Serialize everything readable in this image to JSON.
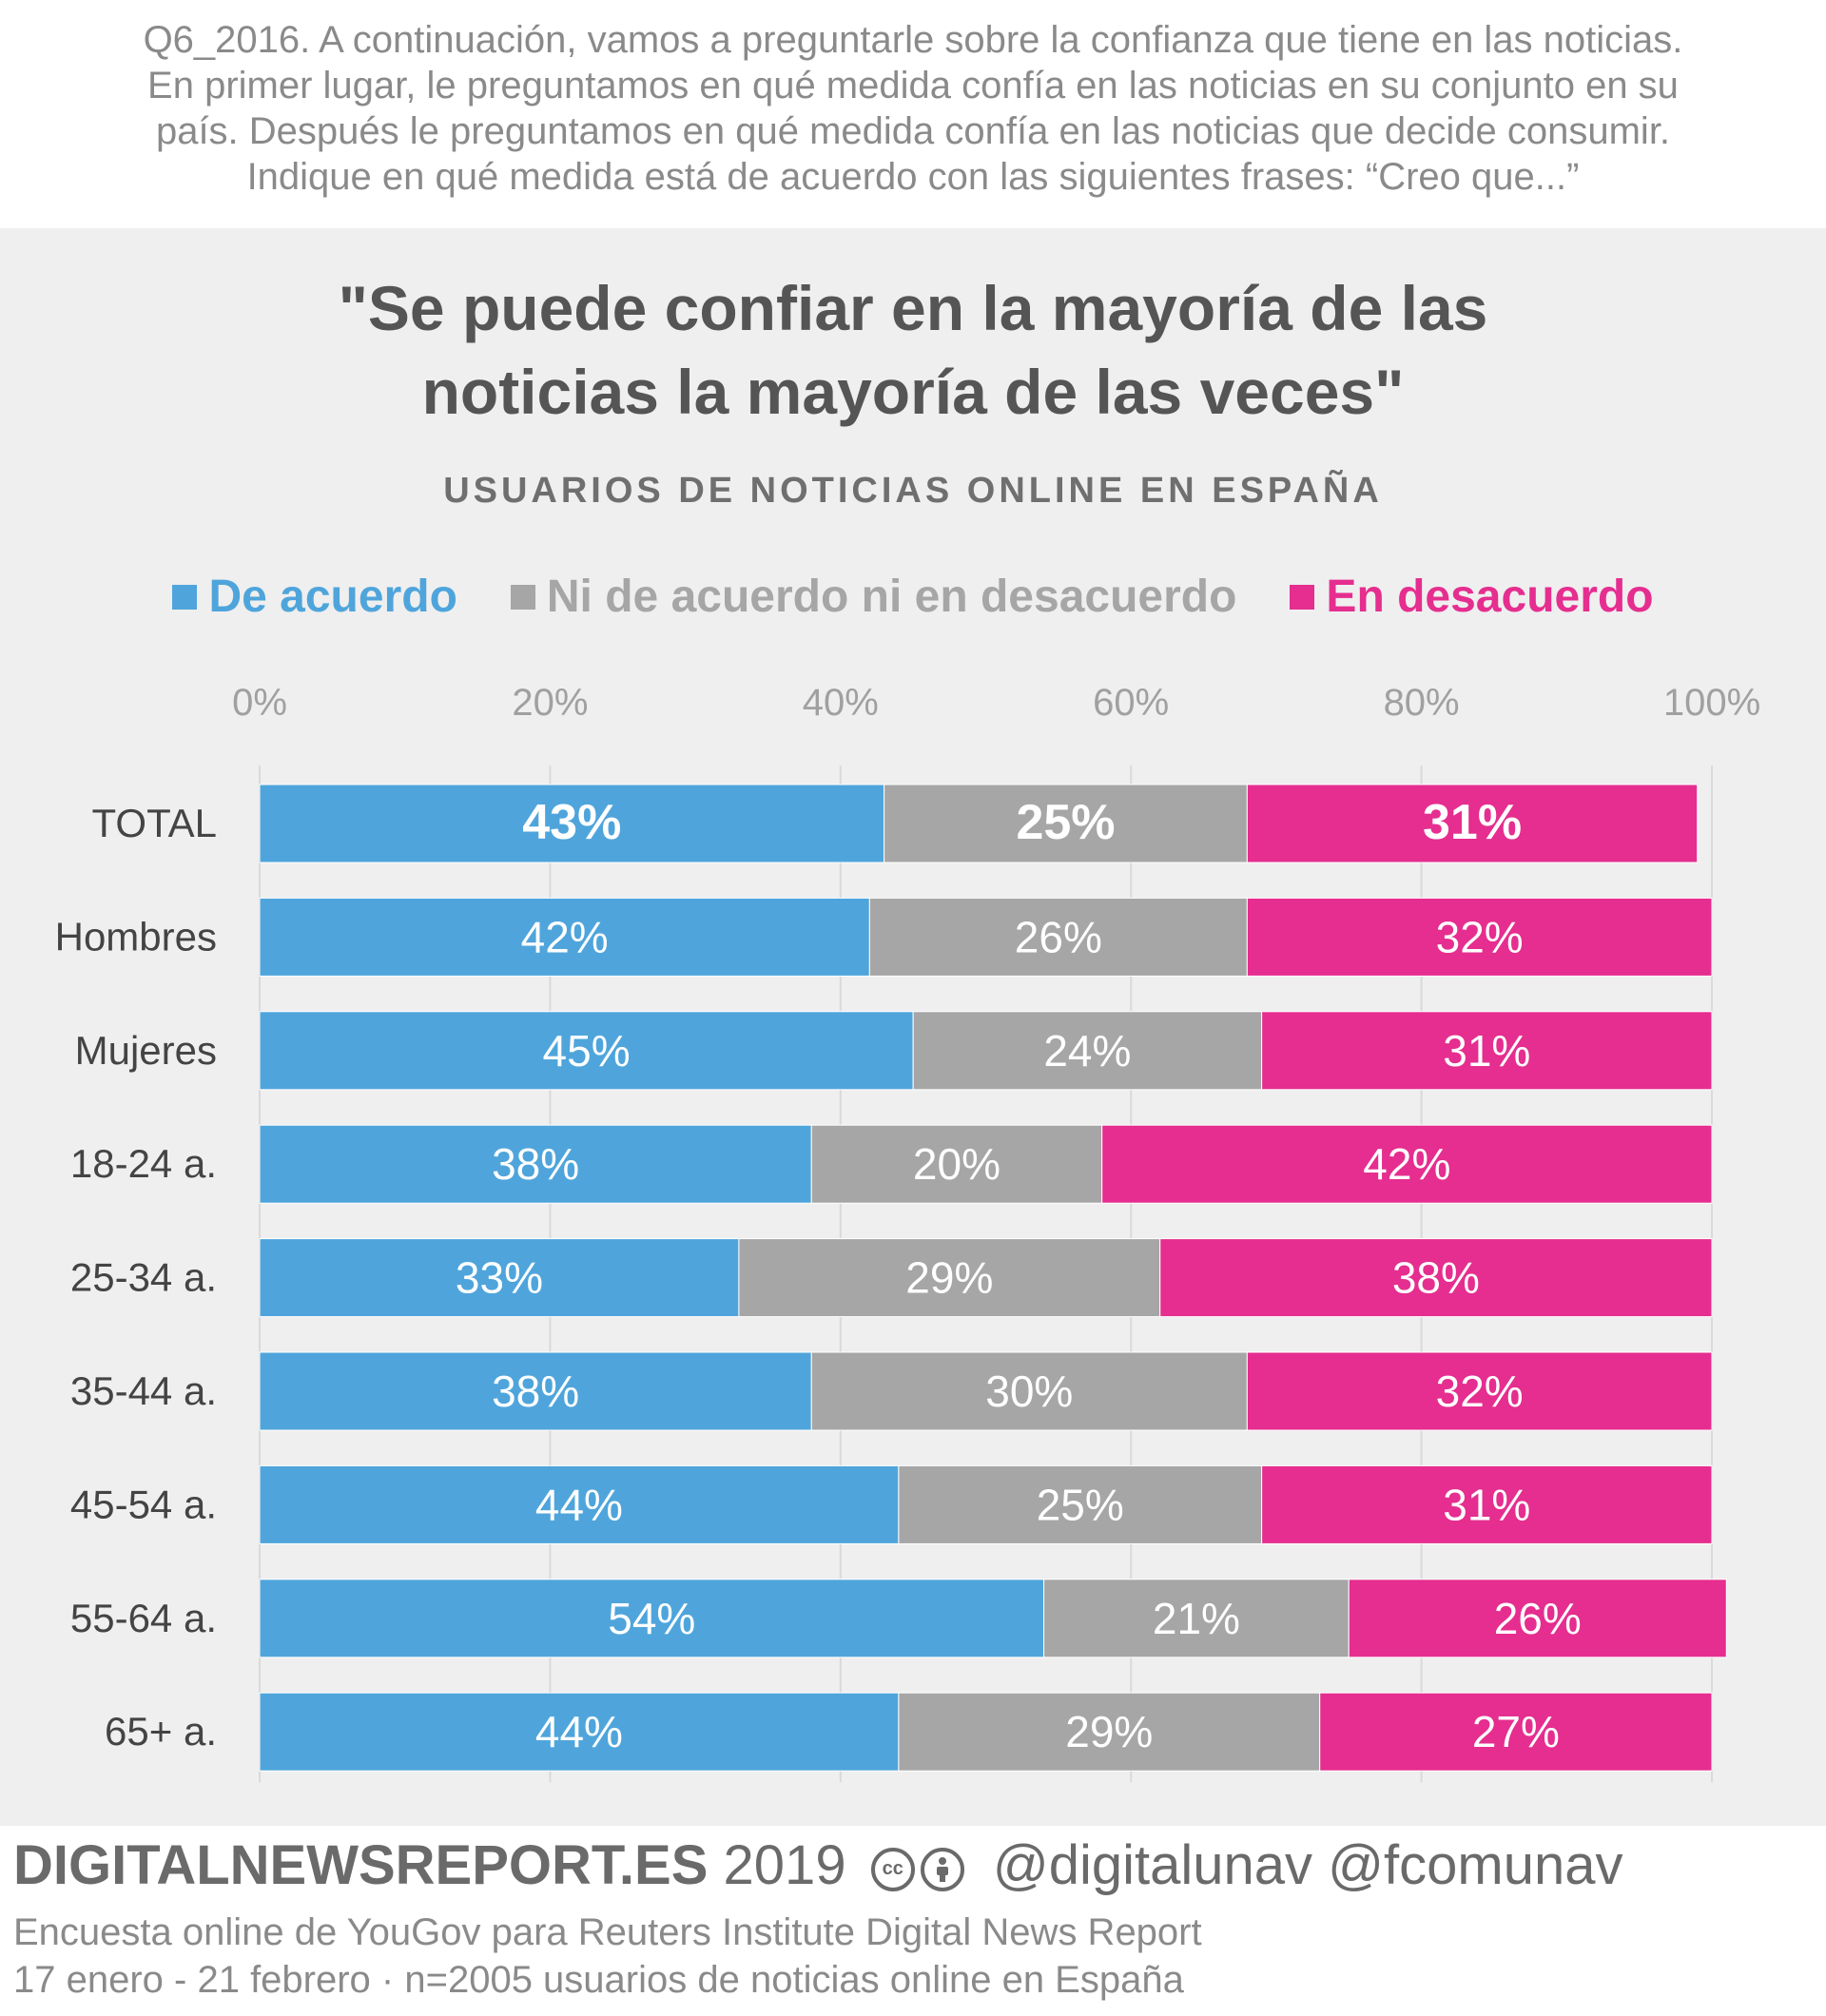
{
  "question": {
    "lines": [
      "Q6_2016. A continuación, vamos a preguntarle sobre la confianza que  tiene en las noticias.",
      "En primer lugar, le preguntamos en qué medida confía en las noticias en su conjunto en su",
      "país. Después le preguntamos en qué medida confía en las noticias que decide consumir.",
      "Indique en qué medida está de acuerdo con las siguientes frases: “Creo que...”"
    ]
  },
  "chart_data": {
    "type": "bar",
    "orientation": "horizontal",
    "stacked": true,
    "title_lines": [
      "\"Se puede confiar en la mayoría de las",
      "noticias la mayoría de las veces\""
    ],
    "subtitle": "USUARIOS DE NOTICIAS ONLINE EN ESPAÑA",
    "legend_position": "top",
    "grid": true,
    "xlim": [
      0,
      100
    ],
    "x_ticks": [
      "0%",
      "20%",
      "40%",
      "60%",
      "80%",
      "100%"
    ],
    "categories": [
      "TOTAL",
      "Hombres",
      "Mujeres",
      "18-24 a.",
      "25-34 a.",
      "35-44 a.",
      "45-54 a.",
      "55-64 a.",
      "65+ a."
    ],
    "series": [
      {
        "name": "De acuerdo",
        "color": "#4fa5db",
        "values": [
          43,
          42,
          45,
          38,
          33,
          38,
          44,
          54,
          44
        ],
        "labels": [
          "43%",
          "42%",
          "45%",
          "38%",
          "33%",
          "38%",
          "44%",
          "54%",
          "44%"
        ]
      },
      {
        "name": "Ni de acuerdo ni en desacuerdo",
        "color": "#a6a6a6",
        "values": [
          25,
          26,
          24,
          20,
          29,
          30,
          25,
          21,
          29
        ],
        "labels": [
          "25%",
          "26%",
          "24%",
          "20%",
          "29%",
          "30%",
          "25%",
          "21%",
          "29%"
        ]
      },
      {
        "name": "En desacuerdo",
        "color": "#e52e8f",
        "values": [
          31,
          32,
          31,
          42,
          38,
          32,
          31,
          26,
          27
        ],
        "labels": [
          "31%",
          "32%",
          "31%",
          "42%",
          "38%",
          "32%",
          "31%",
          "26%",
          "27%"
        ]
      }
    ],
    "bold_rows": [
      "TOTAL"
    ]
  },
  "footer": {
    "brand": "DIGITALNEWSREPORT.ES",
    "year": "2019",
    "cc_icons": [
      "cc",
      "by"
    ],
    "handles": "@digitalunav @fcomunav",
    "note_line1": "Encuesta online de YouGov para Reuters Institute Digital News Report",
    "note_line2": "17 enero - 21 febrero · n=2005 usuarios de noticias online en España"
  },
  "colors": {
    "agree": "#4fa5db",
    "neutral": "#a6a6a6",
    "disagree": "#e52e8f",
    "panel": "#efefef",
    "text_gray": "#555555"
  }
}
